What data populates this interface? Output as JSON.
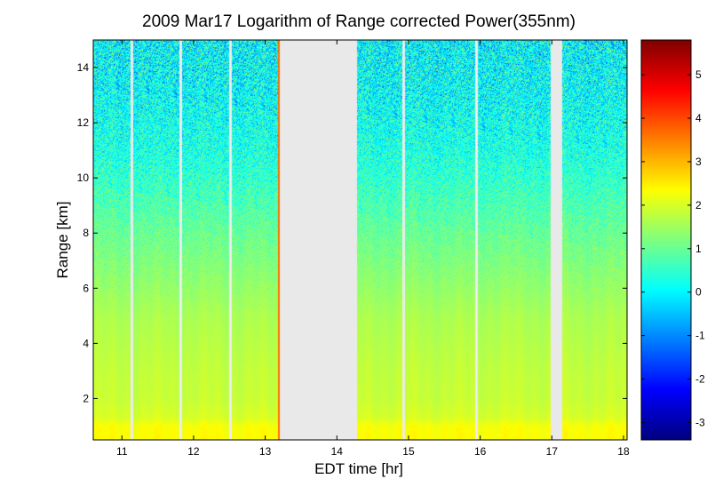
{
  "chart_data": {
    "type": "heatmap",
    "title": "2009 Mar17  Logarithm of Range corrected Power(355nm)",
    "xlabel": "EDT time [hr]",
    "ylabel": "Range [km]",
    "xlim": [
      10.6,
      18.05
    ],
    "ylim": [
      0.5,
      15.0
    ],
    "x_ticks": [
      11,
      12,
      13,
      14,
      15,
      16,
      17,
      18
    ],
    "x_tick_labels": [
      "11",
      "12",
      "13",
      "14",
      "15",
      "16",
      "17",
      "18"
    ],
    "y_ticks": [
      2,
      4,
      6,
      8,
      10,
      12,
      14
    ],
    "y_tick_labels": [
      "2",
      "4",
      "6",
      "8",
      "10",
      "12",
      "14"
    ],
    "colorbar": {
      "range": [
        -3.4,
        5.8
      ],
      "ticks": [
        -3,
        -2,
        -1,
        0,
        1,
        2,
        3,
        4,
        5
      ],
      "tick_labels": [
        "-3",
        "-2",
        "-1",
        "0",
        "1",
        "2",
        "3",
        "4",
        "5"
      ],
      "colormap": "jet"
    },
    "data_gaps_hr": [
      [
        13.2,
        14.28
      ],
      [
        16.98,
        17.15
      ]
    ],
    "thin_gaps_hr": [
      11.14,
      11.82,
      12.52,
      14.93,
      15.95
    ],
    "profile": {
      "range_km": [
        0.5,
        1.0,
        1.3,
        2.0,
        3.0,
        4.0,
        5.0,
        6.0,
        7.0,
        8.0,
        9.0,
        10.0,
        11.0,
        12.0,
        13.0,
        14.0,
        15.0
      ],
      "log_power": [
        2.35,
        2.3,
        2.0,
        1.85,
        1.8,
        1.7,
        1.6,
        1.4,
        1.2,
        1.0,
        0.75,
        0.5,
        0.3,
        0.2,
        0.1,
        0.05,
        0.0
      ]
    },
    "grid": false,
    "legend": "none"
  }
}
